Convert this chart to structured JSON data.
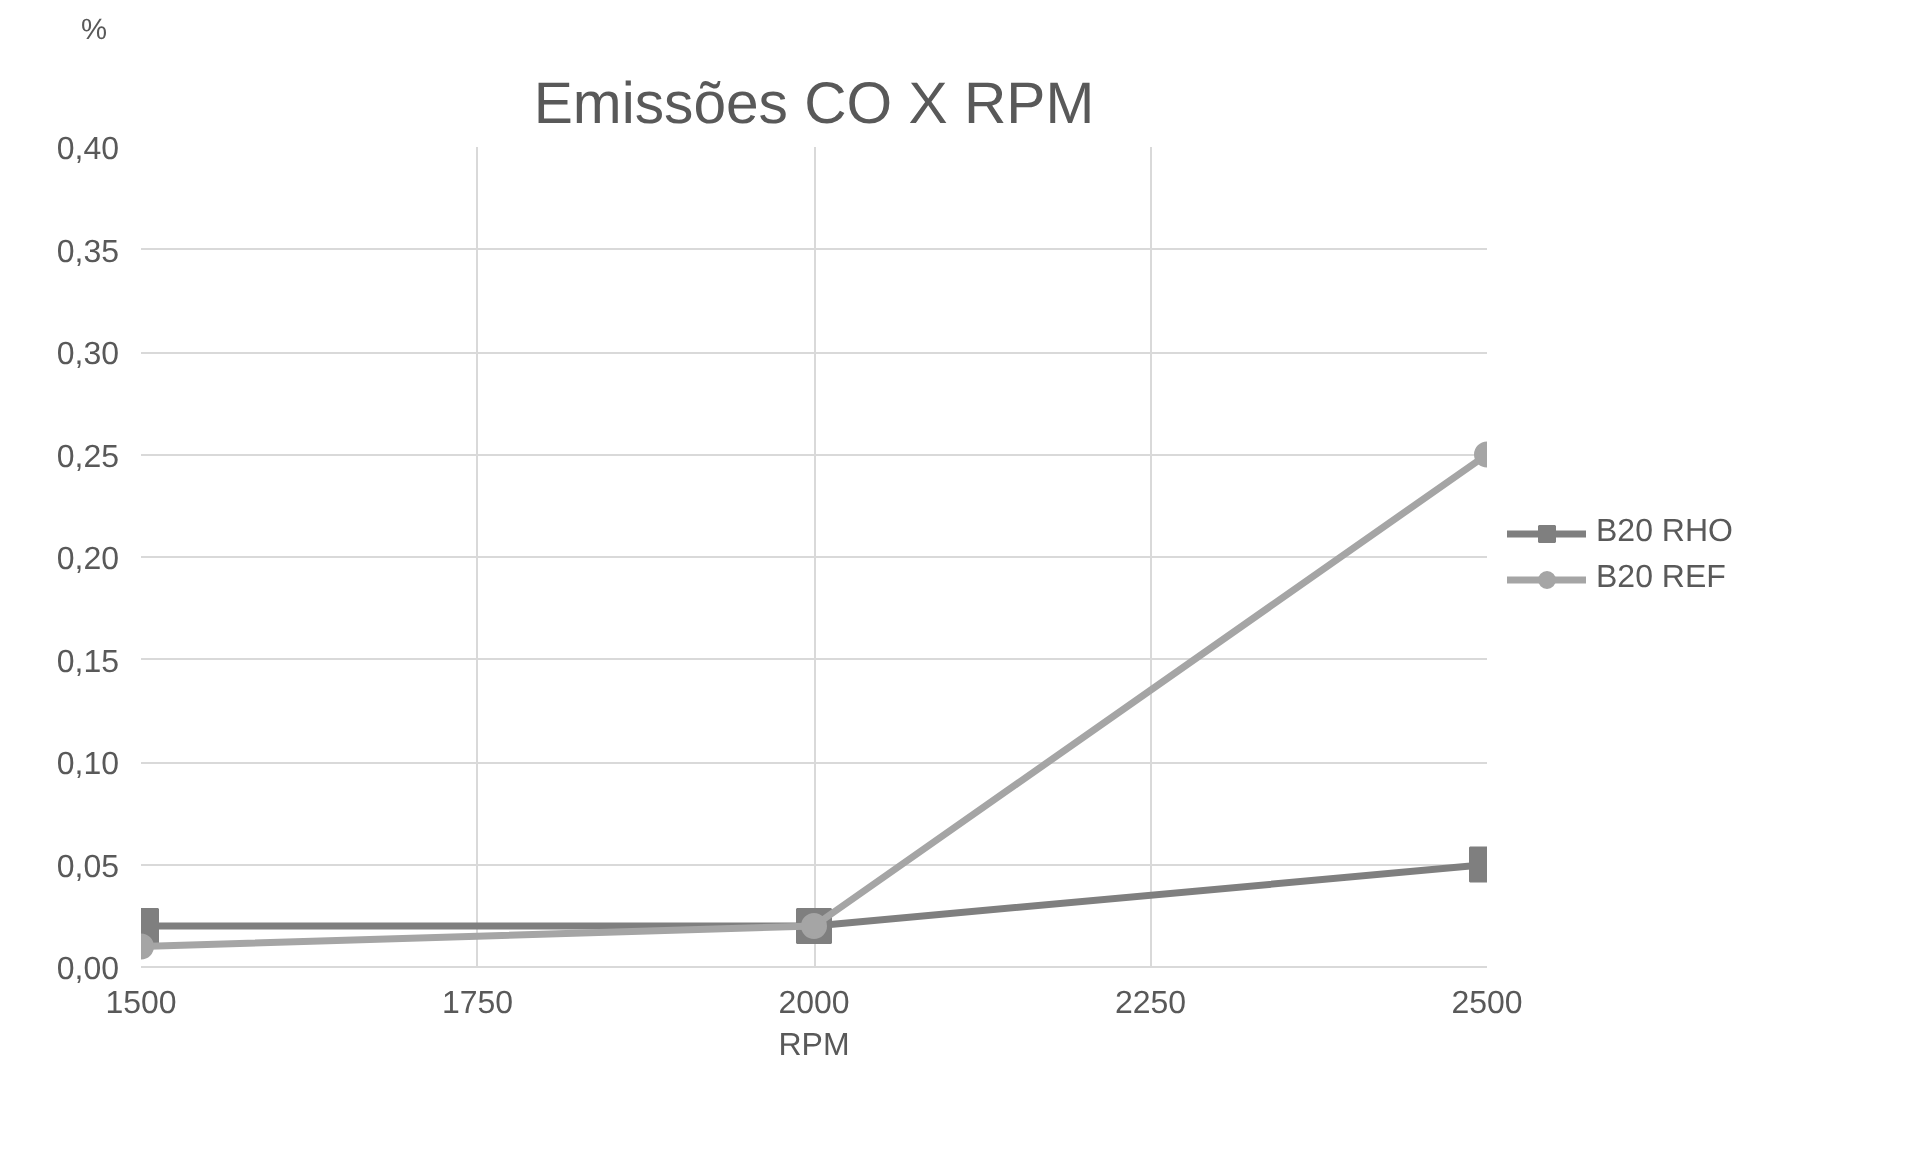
{
  "chart_data": {
    "type": "line",
    "title": "Emissões CO X RPM",
    "xlabel": "RPM",
    "ylabel": "%",
    "x": [
      1500,
      2000,
      2500
    ],
    "series": [
      {
        "name": "B20 RHO",
        "color": "#7f7f7f",
        "values": [
          0.02,
          0.02,
          0.05
        ],
        "marker": "square"
      },
      {
        "name": "B20 REF",
        "color": "#a5a5a5",
        "values": [
          0.01,
          0.02,
          0.25
        ],
        "marker": "circle"
      }
    ],
    "xlim": [
      1500,
      2500
    ],
    "xticks": [
      1500,
      1750,
      2000,
      2250,
      2500
    ],
    "ylim": [
      0,
      0.4
    ],
    "yticks": [
      {
        "value": 0,
        "label": "0,00"
      },
      {
        "value": 0.05,
        "label": "0,05"
      },
      {
        "value": 0.1,
        "label": "0,10"
      },
      {
        "value": 0.15,
        "label": "0,15"
      },
      {
        "value": 0.2,
        "label": "0,20"
      },
      {
        "value": 0.25,
        "label": "0,25"
      },
      {
        "value": 0.3,
        "label": "0,30"
      },
      {
        "value": 0.35,
        "label": "0,35"
      },
      {
        "value": 0.4,
        "label": "0,40"
      }
    ],
    "grid": true,
    "legend": "right",
    "line_style": "solid"
  }
}
